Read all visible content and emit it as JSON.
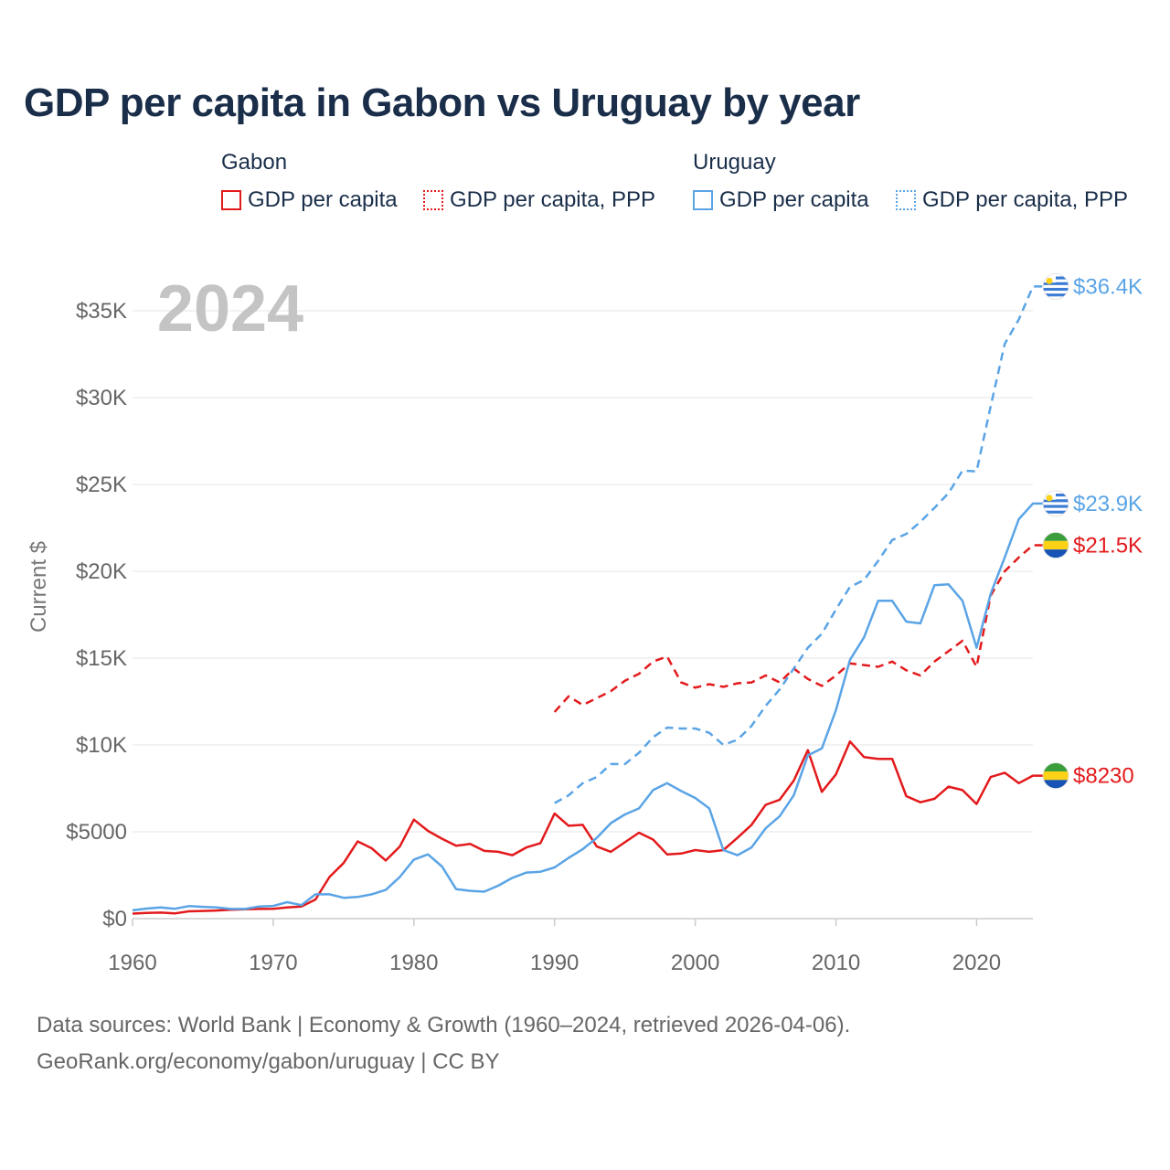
{
  "title": "GDP per capita in Gabon vs Uruguay by year",
  "legend": {
    "groups": [
      {
        "country": "Gabon",
        "color": "#e31a1c",
        "items": [
          {
            "label": "GDP per capita",
            "style": "solid"
          },
          {
            "label": "GDP per capita, PPP",
            "style": "dotted"
          }
        ]
      },
      {
        "country": "Uruguay",
        "color": "#5aa4e6",
        "items": [
          {
            "label": "GDP per capita",
            "style": "solid"
          },
          {
            "label": "GDP per capita, PPP",
            "style": "dotted"
          }
        ]
      }
    ]
  },
  "year_watermark": "2024",
  "footer": {
    "line1": "Data sources: World Bank | Economy & Growth (1960–2024, retrieved 2026-04-06).",
    "line2": "GeoRank.org/economy/gabon/uruguay | CC BY"
  },
  "chart_data": {
    "type": "line",
    "title": "GDP per capita in Gabon vs Uruguay by year",
    "xlabel": "",
    "ylabel": "Current $",
    "xlim": [
      1960,
      2024
    ],
    "ylim": [
      0,
      37000
    ],
    "x_ticks": [
      1960,
      1970,
      1980,
      1990,
      2000,
      2010,
      2020
    ],
    "x_tick_labels": [
      "1960",
      "1970",
      "1980",
      "1990",
      "2000",
      "2010",
      "2020"
    ],
    "y_ticks": [
      0,
      5000,
      10000,
      15000,
      20000,
      25000,
      30000,
      35000
    ],
    "y_tick_labels": [
      "$0",
      "$5000",
      "$10K",
      "$15K",
      "$20K",
      "$25K",
      "$30K",
      "$35K"
    ],
    "grid": true,
    "series": [
      {
        "name": "Gabon GDP per capita",
        "country": "Gabon",
        "color": "#e31a1c",
        "dash": "solid",
        "end_label": "$8230",
        "flag": "gabon",
        "x": [
          1960,
          1961,
          1962,
          1963,
          1964,
          1965,
          1966,
          1967,
          1968,
          1969,
          1970,
          1971,
          1972,
          1973,
          1974,
          1975,
          1976,
          1977,
          1978,
          1979,
          1980,
          1981,
          1982,
          1983,
          1984,
          1985,
          1986,
          1987,
          1988,
          1989,
          1990,
          1991,
          1992,
          1993,
          1994,
          1995,
          1996,
          1997,
          1998,
          1999,
          2000,
          2001,
          2002,
          2003,
          2004,
          2005,
          2006,
          2007,
          2008,
          2009,
          2010,
          2011,
          2012,
          2013,
          2014,
          2015,
          2016,
          2017,
          2018,
          2019,
          2020,
          2021,
          2022,
          2023,
          2024
        ],
        "values": [
          290,
          330,
          350,
          300,
          420,
          440,
          470,
          510,
          540,
          560,
          570,
          640,
          700,
          1100,
          2400,
          3200,
          4450,
          4050,
          3350,
          4150,
          5700,
          5050,
          4600,
          4200,
          4300,
          3900,
          3850,
          3650,
          4100,
          4350,
          6050,
          5350,
          5400,
          4150,
          3850,
          4400,
          4950,
          4550,
          3700,
          3750,
          3950,
          3850,
          3950,
          4650,
          5400,
          6550,
          6850,
          7950,
          9700,
          7300,
          8300,
          10200,
          9300,
          9200,
          9200,
          7050,
          6700,
          6900,
          7600,
          7400,
          6600,
          8150,
          8400,
          7800,
          8230
        ]
      },
      {
        "name": "Gabon GDP per capita, PPP",
        "country": "Gabon",
        "color": "#e31a1c",
        "dash": "dashed",
        "end_label": "$21.5K",
        "flag": "gabon",
        "x": [
          1990,
          1991,
          1992,
          1993,
          1994,
          1995,
          1996,
          1997,
          1998,
          1999,
          2000,
          2001,
          2002,
          2003,
          2004,
          2005,
          2006,
          2007,
          2008,
          2009,
          2010,
          2011,
          2012,
          2013,
          2014,
          2015,
          2016,
          2017,
          2018,
          2019,
          2020,
          2021,
          2022,
          2023,
          2024
        ],
        "values": [
          11900,
          12800,
          12300,
          12700,
          13100,
          13700,
          14100,
          14800,
          15100,
          13600,
          13300,
          13500,
          13350,
          13550,
          13600,
          14000,
          13600,
          14400,
          13800,
          13400,
          14000,
          14700,
          14600,
          14500,
          14800,
          14300,
          14000,
          14800,
          15400,
          16000,
          14500,
          18600,
          20000,
          20800,
          21500
        ]
      },
      {
        "name": "Uruguay GDP per capita",
        "country": "Uruguay",
        "color": "#5aa4e6",
        "dash": "solid",
        "end_label": "$23.9K",
        "flag": "uruguay",
        "x": [
          1960,
          1961,
          1962,
          1963,
          1964,
          1965,
          1966,
          1967,
          1968,
          1969,
          1970,
          1971,
          1972,
          1973,
          1974,
          1975,
          1976,
          1977,
          1978,
          1979,
          1980,
          1981,
          1982,
          1983,
          1984,
          1985,
          1986,
          1987,
          1988,
          1989,
          1990,
          1991,
          1992,
          1993,
          1994,
          1995,
          1996,
          1997,
          1998,
          1999,
          2000,
          2001,
          2002,
          2003,
          2004,
          2005,
          2006,
          2007,
          2008,
          2009,
          2010,
          2011,
          2012,
          2013,
          2014,
          2015,
          2016,
          2017,
          2018,
          2019,
          2020,
          2021,
          2022,
          2023,
          2024
        ],
        "values": [
          480,
          580,
          640,
          570,
          720,
          680,
          640,
          560,
          560,
          700,
          730,
          950,
          780,
          1400,
          1400,
          1200,
          1250,
          1400,
          1650,
          2400,
          3400,
          3700,
          3000,
          1700,
          1600,
          1550,
          1900,
          2350,
          2650,
          2700,
          2950,
          3500,
          4000,
          4650,
          5500,
          6000,
          6350,
          7400,
          7800,
          7350,
          6950,
          6350,
          3950,
          3650,
          4100,
          5200,
          5900,
          7100,
          9400,
          9800,
          12000,
          14900,
          16200,
          18300,
          18300,
          17100,
          17000,
          19200,
          19250,
          18300,
          15600,
          18700,
          20800,
          23000,
          23900
        ]
      },
      {
        "name": "Uruguay GDP per capita, PPP",
        "country": "Uruguay",
        "color": "#5aa4e6",
        "dash": "dashed",
        "end_label": "$36.4K",
        "flag": "uruguay",
        "x": [
          1990,
          1991,
          1992,
          1993,
          1994,
          1995,
          1996,
          1997,
          1998,
          1999,
          2000,
          2001,
          2002,
          2003,
          2004,
          2005,
          2006,
          2007,
          2008,
          2009,
          2010,
          2011,
          2012,
          2013,
          2014,
          2015,
          2016,
          2017,
          2018,
          2019,
          2020,
          2021,
          2022,
          2023,
          2024
        ],
        "values": [
          6650,
          7100,
          7800,
          8150,
          8900,
          8900,
          9550,
          10450,
          11000,
          10950,
          10950,
          10700,
          10000,
          10300,
          11100,
          12250,
          13200,
          14400,
          15600,
          16400,
          17800,
          19100,
          19500,
          20600,
          21800,
          22150,
          22850,
          23650,
          24500,
          25800,
          25750,
          29500,
          33100,
          34500,
          36400
        ]
      }
    ]
  }
}
